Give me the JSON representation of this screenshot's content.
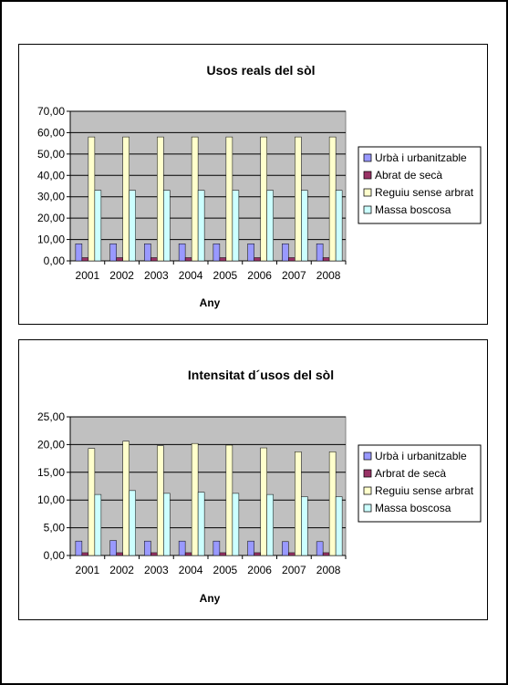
{
  "chart_data": [
    {
      "type": "bar",
      "title": "Usos reals del sòl",
      "xlabel": "Any",
      "ylabel": "",
      "ylim": [
        0,
        70
      ],
      "yticks": [
        "70,00",
        "60,00",
        "50,00",
        "40,00",
        "30,00",
        "20,00",
        "10,00",
        "0,00"
      ],
      "ytick_values": [
        70,
        60,
        50,
        40,
        30,
        20,
        10,
        0
      ],
      "categories": [
        "2001",
        "2002",
        "2003",
        "2004",
        "2005",
        "2006",
        "2007",
        "2008"
      ],
      "plot_background": "#c0c0c0",
      "grid": true,
      "legend_position": "right",
      "series": [
        {
          "name": "Urbà i urbanitzable",
          "color": "#9999ff",
          "values": [
            8,
            8,
            8,
            8,
            8,
            8,
            8,
            8
          ]
        },
        {
          "name": "Abrat de secà",
          "color": "#993366",
          "values": [
            1.5,
            1.5,
            1.5,
            1.5,
            1.5,
            1.5,
            1.5,
            1.5
          ]
        },
        {
          "name": "Reguiu sense arbrat",
          "color": "#ffffcc",
          "values": [
            58,
            58,
            58,
            58,
            58,
            58,
            58,
            58
          ]
        },
        {
          "name": "Massa boscosa",
          "color": "#ccffff",
          "values": [
            33,
            33,
            33,
            33,
            33,
            33,
            33,
            33
          ]
        }
      ]
    },
    {
      "type": "bar",
      "title": "Intensitat d´usos del sòl",
      "xlabel": "Any",
      "ylabel": "",
      "ylim": [
        0,
        25
      ],
      "yticks": [
        "25,00",
        "20,00",
        "15,00",
        "10,00",
        "5,00",
        "0,00"
      ],
      "ytick_values": [
        25,
        20,
        15,
        10,
        5,
        0
      ],
      "categories": [
        "2001",
        "2002",
        "2003",
        "2004",
        "2005",
        "2006",
        "2007",
        "2008"
      ],
      "plot_background": "#c0c0c0",
      "grid": true,
      "legend_position": "right",
      "series": [
        {
          "name": "Urbà i urbanitzable",
          "color": "#9999ff",
          "values": [
            2.6,
            2.7,
            2.6,
            2.6,
            2.6,
            2.6,
            2.5,
            2.5
          ]
        },
        {
          "name": "Arbrat de secà",
          "color": "#993366",
          "values": [
            0.5,
            0.5,
            0.5,
            0.5,
            0.5,
            0.5,
            0.5,
            0.5
          ]
        },
        {
          "name": "Reguiu sense arbrat",
          "color": "#ffffcc",
          "values": [
            19.3,
            20.6,
            19.8,
            20.2,
            19.9,
            19.4,
            18.7,
            18.7
          ]
        },
        {
          "name": "Massa boscosa",
          "color": "#ccffff",
          "values": [
            11,
            11.7,
            11.2,
            11.4,
            11.2,
            11,
            10.6,
            10.6
          ]
        }
      ]
    }
  ]
}
